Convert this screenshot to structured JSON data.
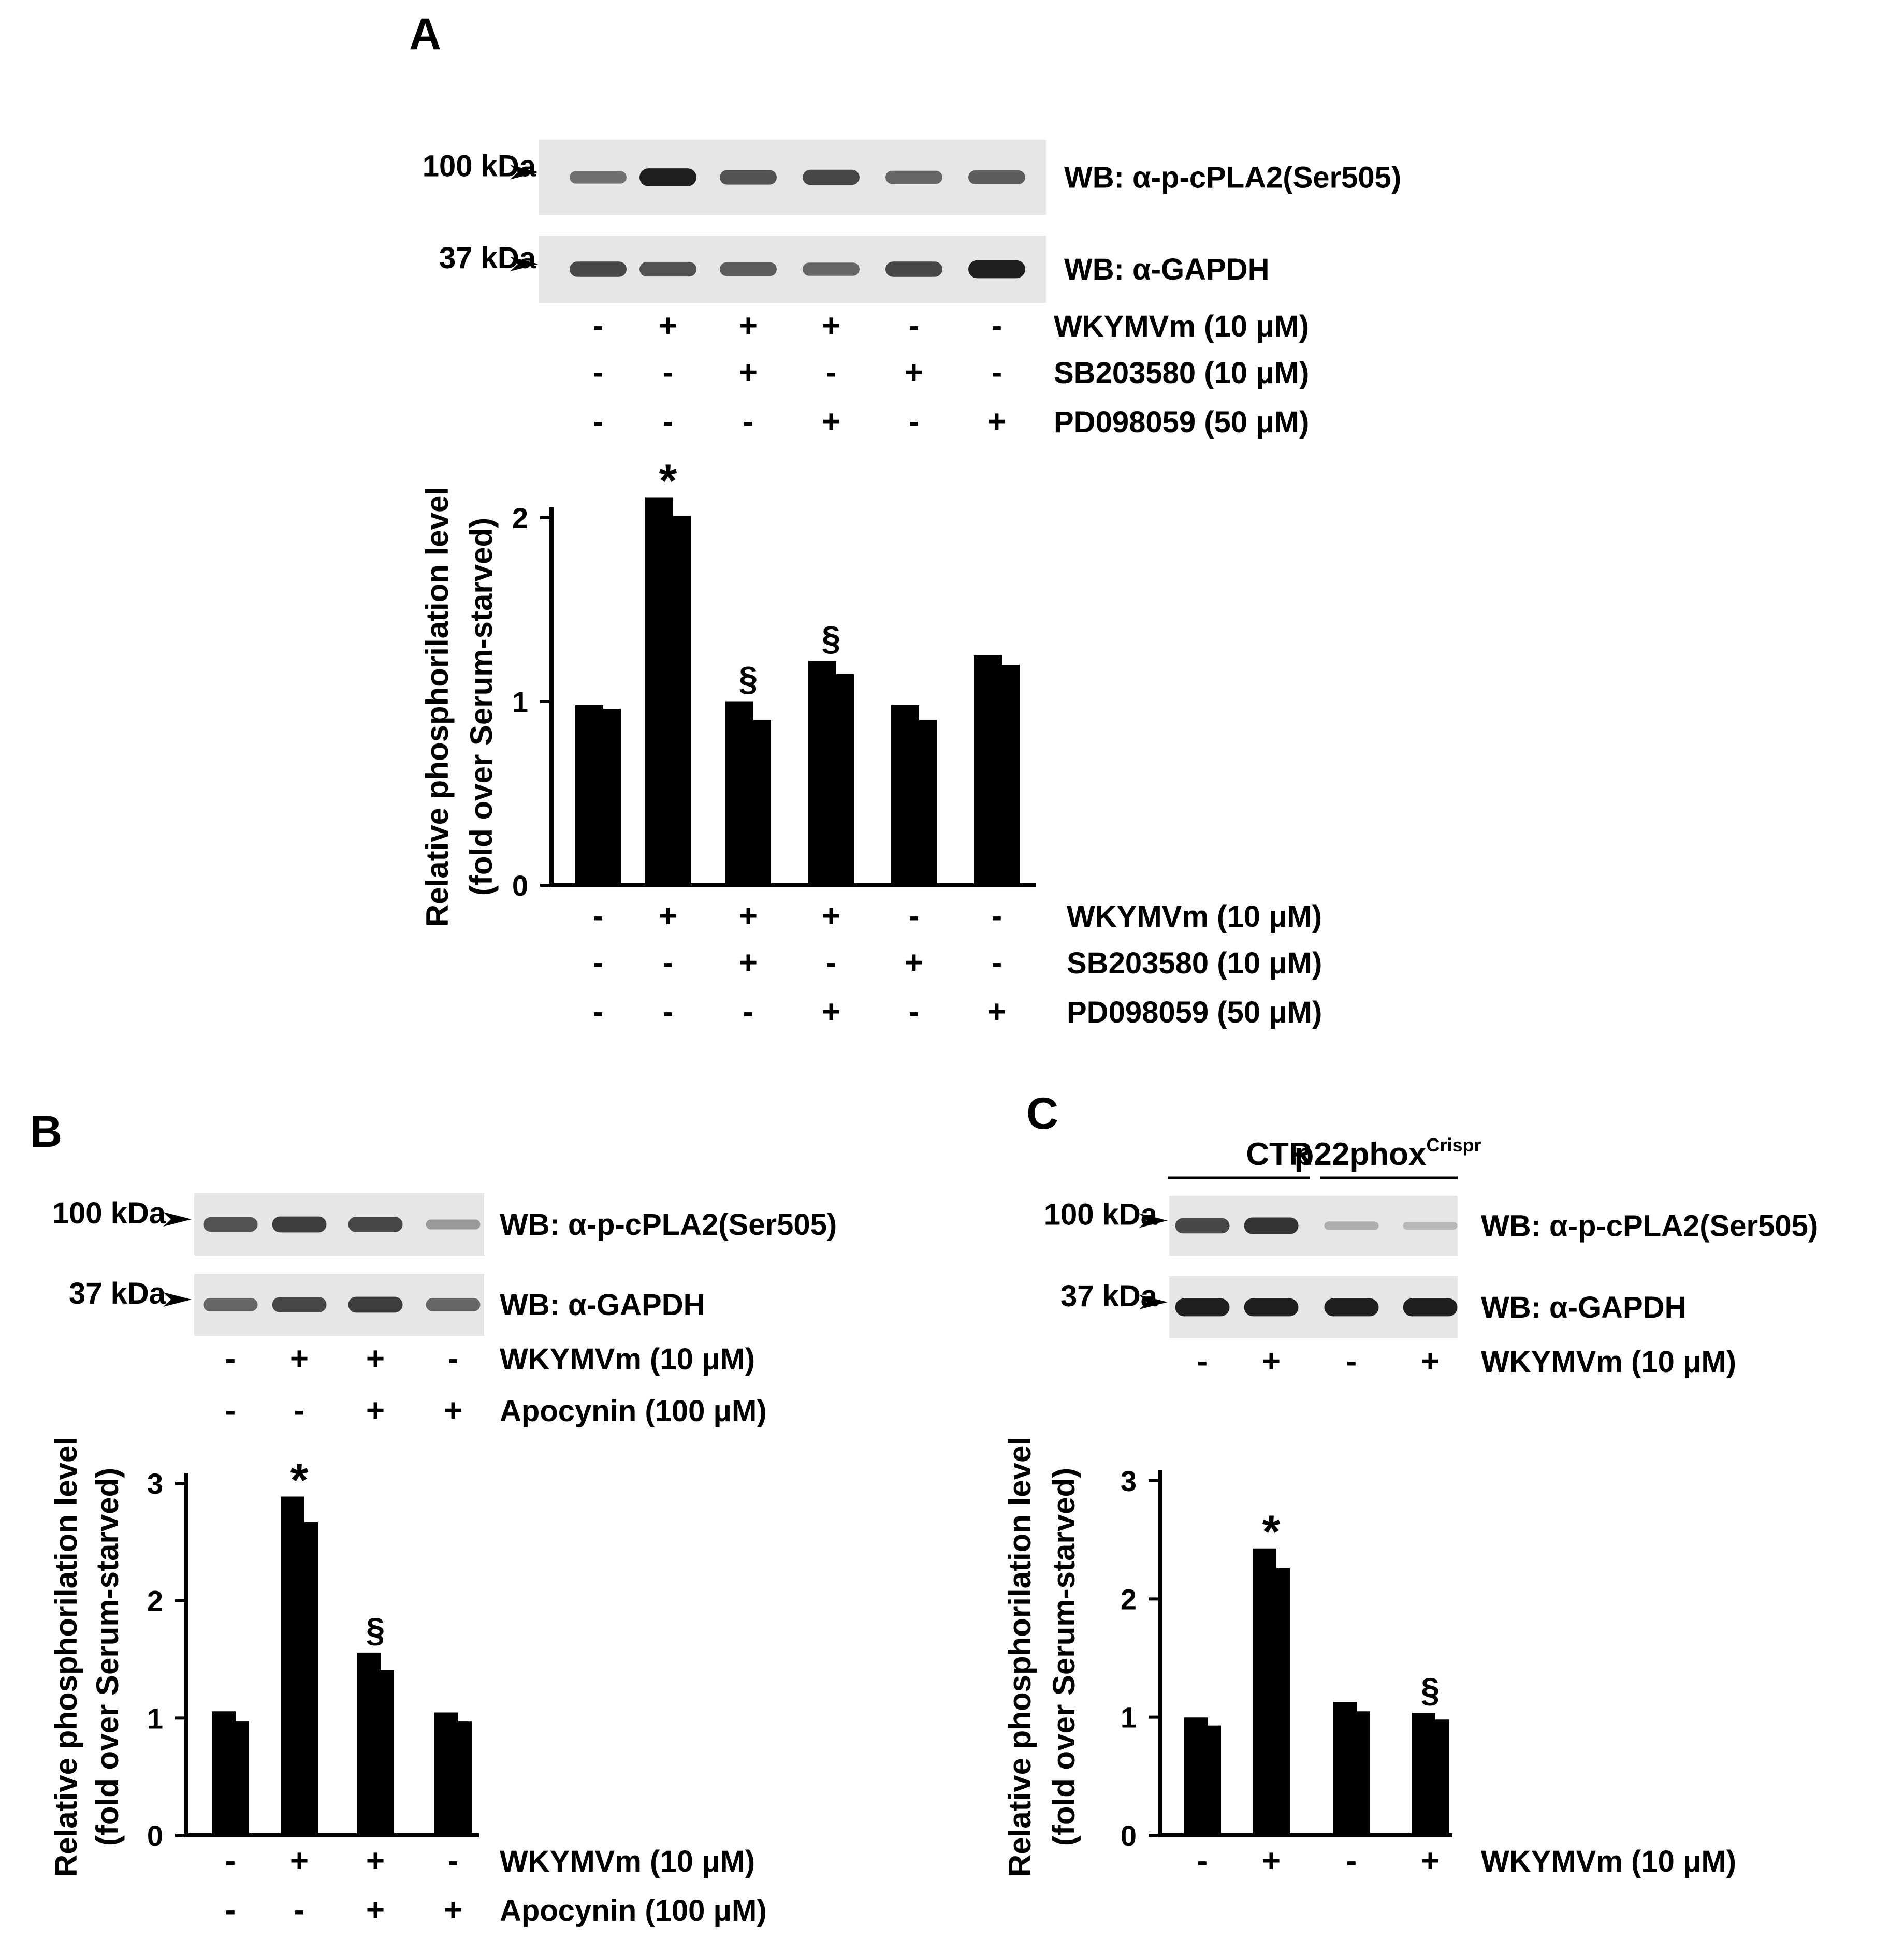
{
  "panels": [
    {
      "id": "A",
      "letter": "A",
      "blots": [
        {
          "marker": "100 kDa",
          "label": "WB: α-p-cPLA2(Ser505)",
          "band_intensity": [
            0.55,
            0.95,
            0.7,
            0.75,
            0.6,
            0.65
          ]
        },
        {
          "marker": "37 kDa",
          "label": "WB: α-GAPDH",
          "band_intensity": [
            0.75,
            0.7,
            0.65,
            0.6,
            0.75,
            0.95
          ]
        }
      ],
      "treatments": [
        {
          "label": "WKYMVm (10 μM)",
          "signs": [
            "-",
            "+",
            "+",
            "+",
            "-",
            "-"
          ]
        },
        {
          "label": "SB203580 (10 μM)",
          "signs": [
            "-",
            "-",
            "+",
            "-",
            "+",
            "-"
          ]
        },
        {
          "label": "PD098059 (50 μM)",
          "signs": [
            "-",
            "-",
            "-",
            "+",
            "-",
            "+"
          ]
        }
      ],
      "ylabel_line1": "Relative phosphorilation level",
      "ylabel_line2": "(fold over Serum-starved)"
    },
    {
      "id": "B",
      "letter": "B",
      "blots": [
        {
          "marker": "100 kDa",
          "label": "WB: α-p-cPLA2(Ser505)",
          "band_intensity": [
            0.7,
            0.8,
            0.75,
            0.35
          ]
        },
        {
          "marker": "37 kDa",
          "label": "WB: α-GAPDH",
          "band_intensity": [
            0.6,
            0.75,
            0.8,
            0.6
          ]
        }
      ],
      "treatments": [
        {
          "label": "WKYMVm (10 μM)",
          "signs": [
            "-",
            "+",
            "+",
            "-"
          ]
        },
        {
          "label": "Apocynin (100 μM)",
          "signs": [
            "-",
            "-",
            "+",
            "+"
          ]
        }
      ],
      "ylabel_line1": "Relative phosphorilation level",
      "ylabel_line2": "(fold over Serum-starved)"
    },
    {
      "id": "C",
      "letter": "C",
      "groups": [
        {
          "label": "CTR"
        },
        {
          "label": "p22phox",
          "superscript": "Crispr"
        }
      ],
      "blots": [
        {
          "marker": "100 kDa",
          "label": "WB: α-p-cPLA2(Ser505)",
          "band_intensity": [
            0.75,
            0.85,
            0.25,
            0.2
          ]
        },
        {
          "marker": "37 kDa",
          "label": "WB: α-GAPDH",
          "band_intensity": [
            0.95,
            0.95,
            0.95,
            0.95
          ]
        }
      ],
      "treatments": [
        {
          "label": "WKYMVm (10 μM)",
          "signs": [
            "-",
            "+",
            "-",
            "+"
          ]
        }
      ],
      "ylabel_line1": "Relative phosphorilation level",
      "ylabel_line2": "(fold over Serum-starved)"
    }
  ],
  "chart_data": [
    {
      "type": "bar",
      "panel": "A",
      "ylabel": "Relative phosphorilation level (fold over Serum-starved)",
      "xlabel": "",
      "ylim": [
        0,
        2
      ],
      "yticks": [
        0,
        1,
        2
      ],
      "grid": false,
      "values": [
        0.96,
        2.01,
        0.9,
        1.15,
        0.9,
        1.2
      ],
      "errors": [
        0.01,
        0.09,
        0.09,
        0.06,
        0.07,
        0.04
      ],
      "annotations": [
        "",
        "*",
        "§",
        "§",
        "",
        ""
      ],
      "bar_color": "#000000"
    },
    {
      "type": "bar",
      "panel": "B",
      "ylabel": "Relative phosphorilation level (fold over Serum-starved)",
      "xlabel": "",
      "ylim": [
        0,
        3
      ],
      "yticks": [
        0,
        1,
        2,
        3
      ],
      "grid": false,
      "values": [
        0.97,
        2.67,
        1.41,
        0.97
      ],
      "errors": [
        0.07,
        0.2,
        0.13,
        0.06
      ],
      "annotations": [
        "",
        "*",
        "§",
        ""
      ],
      "bar_color": "#000000"
    },
    {
      "type": "bar",
      "panel": "C",
      "ylabel": "Relative phosphorilation level (fold over Serum-starved)",
      "xlabel": "",
      "ylim": [
        0,
        3
      ],
      "yticks": [
        0,
        1,
        2,
        3
      ],
      "grid": false,
      "values": [
        0.93,
        2.26,
        1.05,
        0.98
      ],
      "errors": [
        0.05,
        0.15,
        0.06,
        0.04
      ],
      "annotations": [
        "",
        "*",
        "",
        "§"
      ],
      "bar_color": "#000000"
    }
  ]
}
